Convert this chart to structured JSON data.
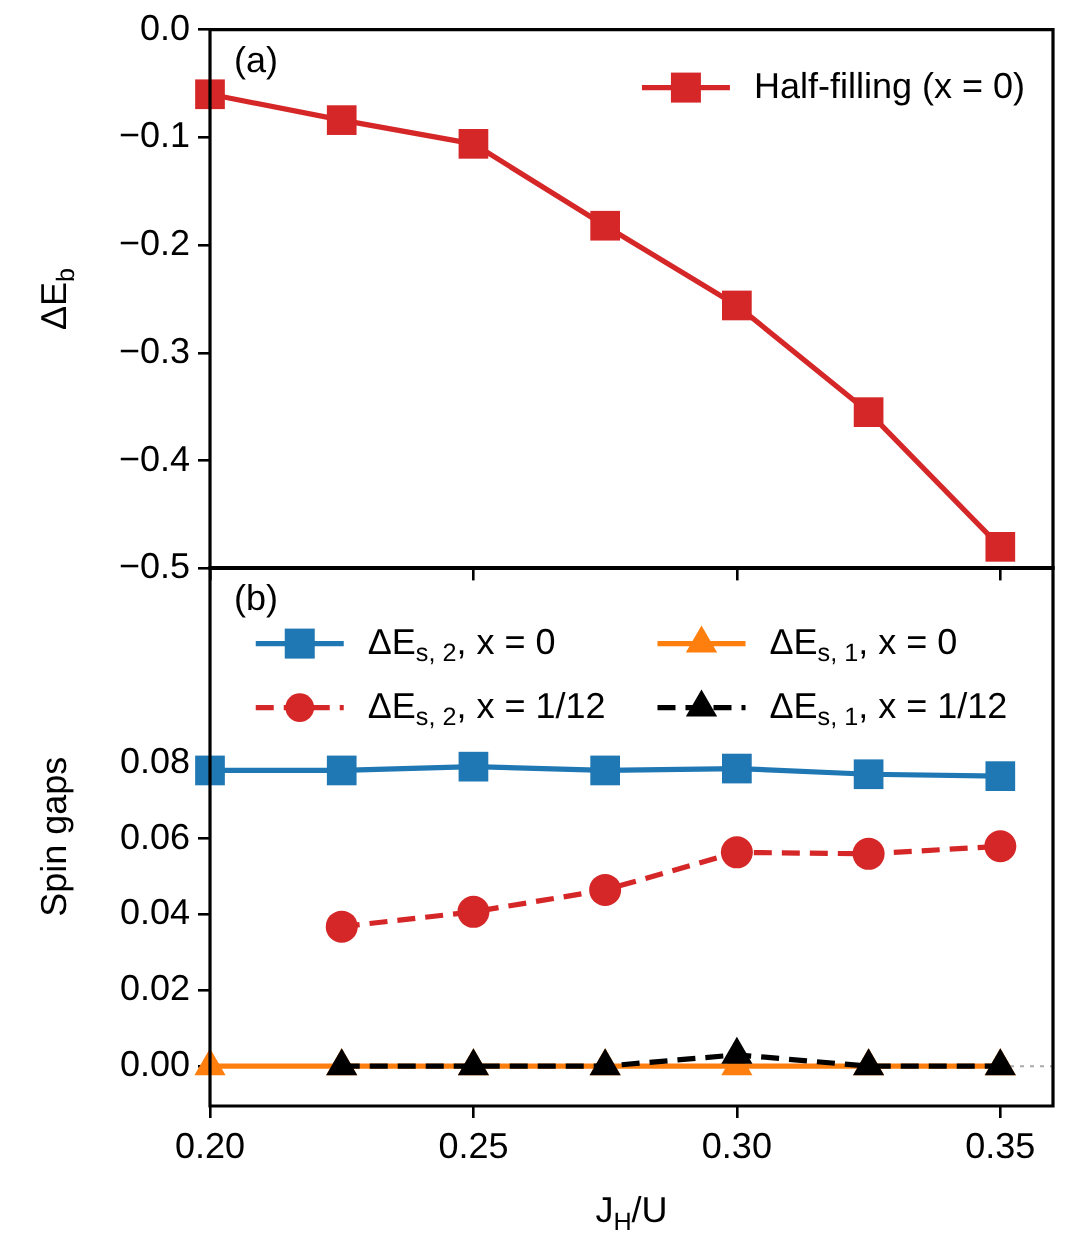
{
  "chart_data": [
    {
      "type": "line",
      "ylabel": "ΔE$_{b}$",
      "annotations": [
        "(a)"
      ],
      "xlim": [
        0.2,
        0.36
      ],
      "xticks": [
        {
          "value": 0.2,
          "label": null
        },
        {
          "value": 0.25,
          "label": null
        },
        {
          "value": 0.3,
          "label": null
        },
        {
          "value": 0.35,
          "label": null
        }
      ],
      "ylim": [
        -0.5,
        0
      ],
      "yticks": [
        {
          "value": -0.5,
          "label": "−0.5"
        },
        {
          "value": -0.4,
          "label": "−0.4"
        },
        {
          "value": -0.3,
          "label": "−0.3"
        },
        {
          "value": -0.2,
          "label": "−0.2"
        },
        {
          "value": -0.1,
          "label": "−0.1"
        },
        {
          "value": 0,
          "label": "0.0"
        }
      ],
      "tick_labels": "y",
      "legend": "top right",
      "series": [
        {
          "name": "Half-filling (x = 0)",
          "color": "#d62728",
          "marker": "square",
          "line_style": "solid",
          "x": [
            0.2,
            0.225,
            0.25,
            0.275,
            0.3,
            0.325,
            0.35
          ],
          "values": [
            -0.06,
            -0.084,
            -0.106,
            -0.182,
            -0.256,
            -0.355,
            -0.48
          ]
        }
      ]
    },
    {
      "type": "line",
      "xlabel": "J$_{H}$/U",
      "ylabel": "Spin gaps",
      "annotations": [
        "(b)"
      ],
      "xlim": [
        0.2,
        0.36
      ],
      "xticks": [
        {
          "value": 0.2,
          "label": "0.20"
        },
        {
          "value": 0.25,
          "label": "0.25"
        },
        {
          "value": 0.3,
          "label": "0.30"
        },
        {
          "value": 0.35,
          "label": "0.35"
        }
      ],
      "ylim": [
        -0.0105,
        0.1315
      ],
      "yticks": [
        {
          "value": 0,
          "label": "0.00"
        },
        {
          "value": 0.02,
          "label": "0.02"
        },
        {
          "value": 0.04,
          "label": "0.04"
        },
        {
          "value": 0.06,
          "label": "0.06"
        },
        {
          "value": 0.08,
          "label": "0.08"
        }
      ],
      "legend": "top",
      "ref_lines": [
        {
          "axis": "y",
          "value": 0,
          "color": "#aaaaaa",
          "line_style": "dotted"
        }
      ],
      "series": [
        {
          "name": "ΔE$_{s, 2}$, x = 0",
          "color": "#1f77b4",
          "marker": "square",
          "line_style": "solid",
          "x": [
            0.2,
            0.225,
            0.25,
            0.275,
            0.3,
            0.325,
            0.35
          ],
          "values": [
            0.078,
            0.078,
            0.079,
            0.078,
            0.0785,
            0.077,
            0.0765
          ]
        },
        {
          "name": "ΔE$_{s, 1}$, x = 0",
          "color": "#ff7f0e",
          "marker": "triangle",
          "line_style": "solid",
          "x": [
            0.2,
            0.225,
            0.25,
            0.275,
            0.3,
            0.325,
            0.35
          ],
          "values": [
            0,
            0,
            0,
            0,
            0,
            0,
            0
          ]
        },
        {
          "name": "ΔE$_{s, 2}$, x = 1/12",
          "color": "#d62728",
          "marker": "circle",
          "line_style": "dashed",
          "x": [
            0.225,
            0.25,
            0.275,
            0.3,
            0.325,
            0.35
          ],
          "values": [
            0.0368,
            0.0407,
            0.0465,
            0.0564,
            0.056,
            0.058
          ]
        },
        {
          "name": "ΔE$_{s, 1}$, x = 1/12",
          "color": "#000000",
          "marker": "triangle",
          "line_style": "dashed",
          "x": [
            0.225,
            0.25,
            0.275,
            0.3,
            0.325,
            0.35
          ],
          "values": [
            0,
            0,
            0,
            0.003,
            0,
            0
          ]
        }
      ]
    }
  ]
}
